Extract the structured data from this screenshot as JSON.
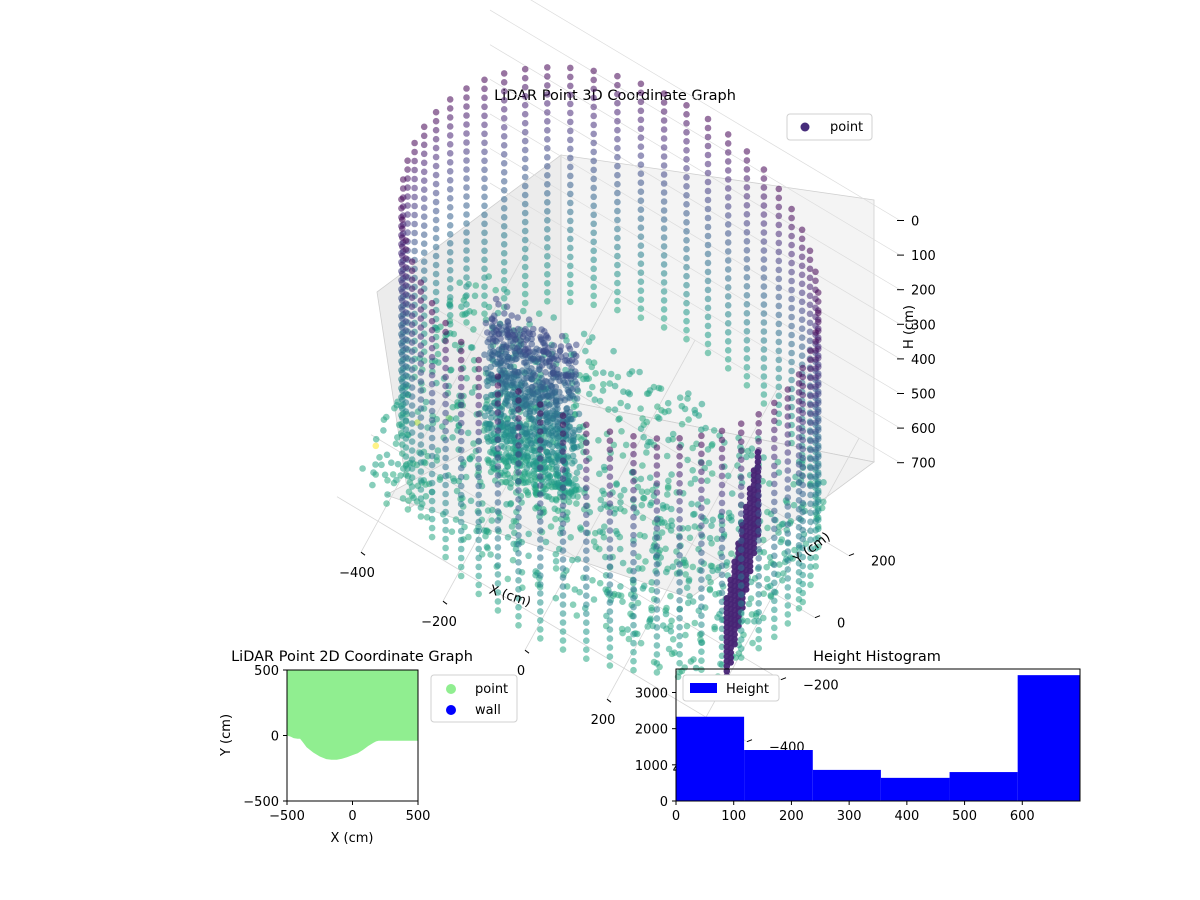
{
  "chart_data": [
    {
      "type": "scatter",
      "projection": "3d",
      "title": "LiDAR Point 3D Coordinate Graph",
      "xlabel": "X (cm)",
      "ylabel": "Y (cm)",
      "zlabel": "H (cm)",
      "xlim": [
        -500,
        500
      ],
      "ylim": [
        -500,
        500
      ],
      "zlim": [
        0,
        700
      ],
      "z_inverted": true,
      "xticks": [
        -400,
        -200,
        0,
        200,
        400
      ],
      "yticks": [
        -400,
        -200,
        0,
        200
      ],
      "zticks": [
        0,
        100,
        200,
        300,
        400,
        500,
        600,
        700
      ],
      "colormap": "viridis",
      "legend": {
        "position": "upper-right",
        "entries": [
          {
            "label": "point",
            "color": "#472d7b"
          }
        ]
      },
      "series": [
        {
          "name": "point"
        }
      ],
      "structures": [
        {
          "kind": "cylinder-wall",
          "x_center": 0,
          "y_center": 0,
          "radius": 470,
          "h_range": [
            0,
            700
          ]
        },
        {
          "kind": "block",
          "x_range": [
            -250,
            -50
          ],
          "y_range": [
            -150,
            -60
          ],
          "h_range": [
            250,
            700
          ]
        },
        {
          "kind": "curtain",
          "x_range": [
            340,
            430
          ],
          "y_range": [
            -350,
            50
          ],
          "h_range": [
            380,
            620
          ]
        },
        {
          "kind": "floor-scatter",
          "x_range": [
            -480,
            420
          ],
          "y_range": [
            -360,
            320
          ],
          "h_range": [
            640,
            700
          ]
        }
      ],
      "outliers": [
        {
          "x": -480,
          "y": -220,
          "h": 700
        },
        {
          "x": -420,
          "y": -120,
          "h": 680
        },
        {
          "x": -360,
          "y": -80,
          "h": 660
        },
        {
          "x": -300,
          "y": -40,
          "h": 640
        }
      ]
    },
    {
      "type": "area",
      "title": "LiDAR Point 2D Coordinate Graph",
      "xlabel": "X (cm)",
      "ylabel": "Y (cm)",
      "xlim": [
        -500,
        500
      ],
      "ylim": [
        -500,
        500
      ],
      "xticks": [
        -500,
        0,
        500
      ],
      "yticks": [
        -500,
        0,
        500
      ],
      "legend": {
        "position": "outside-right",
        "entries": [
          {
            "label": "point",
            "color": "#90ee90"
          },
          {
            "label": "wall",
            "color": "#0000ff"
          }
        ]
      },
      "series": [
        {
          "name": "point",
          "color": "#90ee90",
          "top": 500,
          "x": [
            -500,
            -470,
            -450,
            -420,
            -400,
            -380,
            -350,
            -300,
            -250,
            -200,
            -160,
            -120,
            -80,
            -40,
            0,
            40,
            80,
            120,
            160,
            180,
            200,
            300,
            400,
            500
          ],
          "y": [
            0,
            -10,
            -20,
            -25,
            -25,
            -50,
            -90,
            -130,
            -160,
            -180,
            -185,
            -185,
            -178,
            -165,
            -150,
            -135,
            -110,
            -80,
            -55,
            -45,
            -40,
            -40,
            -40,
            -40
          ]
        },
        {
          "name": "wall",
          "color": "#0000ff",
          "x": [],
          "y": []
        }
      ]
    },
    {
      "type": "bar",
      "title": "Height Histogram",
      "xlim": [
        0,
        700
      ],
      "ylim": [
        0,
        3650
      ],
      "xticks": [
        0,
        100,
        200,
        300,
        400,
        500,
        600
      ],
      "yticks": [
        0,
        1000,
        2000,
        3000
      ],
      "legend": {
        "position": "upper-left",
        "entries": [
          {
            "label": "Height",
            "color": "#0000ff"
          }
        ]
      },
      "bin_edges": [
        0,
        118,
        237,
        355,
        474,
        592,
        700
      ],
      "series": [
        {
          "name": "Height",
          "color": "#0000ff",
          "values": [
            2330,
            1410,
            860,
            640,
            800,
            3480
          ]
        }
      ]
    }
  ]
}
